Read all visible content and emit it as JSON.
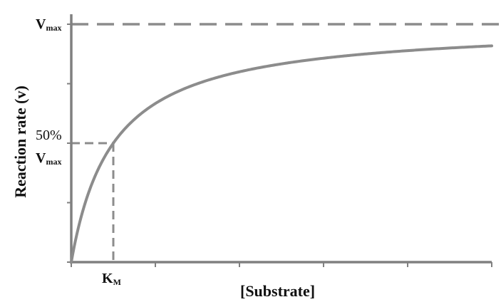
{
  "chart_data": {
    "type": "line",
    "title": "",
    "xlabel": "[Substrate]",
    "ylabel": "Reaction rate (v)",
    "vmax": 1.0,
    "km": 1.0,
    "xlim": [
      0,
      10
    ],
    "ylim": [
      0,
      1.0
    ],
    "x_ticks": [
      0,
      2,
      4,
      6,
      8,
      10
    ],
    "y_ticks": [
      0,
      0.25,
      0.5,
      0.75,
      1.0
    ],
    "series": [
      {
        "x": [
          0,
          0.25,
          0.5,
          0.75,
          1,
          1.5,
          2,
          3,
          4,
          5,
          6,
          7,
          8,
          9,
          10
        ],
        "values": [
          0,
          0.2,
          0.333,
          0.429,
          0.5,
          0.6,
          0.667,
          0.75,
          0.8,
          0.833,
          0.857,
          0.875,
          0.889,
          0.9,
          0.909
        ]
      }
    ],
    "reference_lines": {
      "vmax_line": 1.0,
      "half_vmax": 0.5,
      "km": 1.0
    },
    "labels": {
      "vmax_main": "V",
      "vmax_sub": "max",
      "half_pct": "50%",
      "half_v": "V",
      "half_sub": "max",
      "km_main": "K",
      "km_sub": "M"
    },
    "colors": {
      "axis": "#808080",
      "curve": "#8c8c8c",
      "dashed": "#8c8c8c",
      "text": "#111111"
    },
    "grid": false
  }
}
